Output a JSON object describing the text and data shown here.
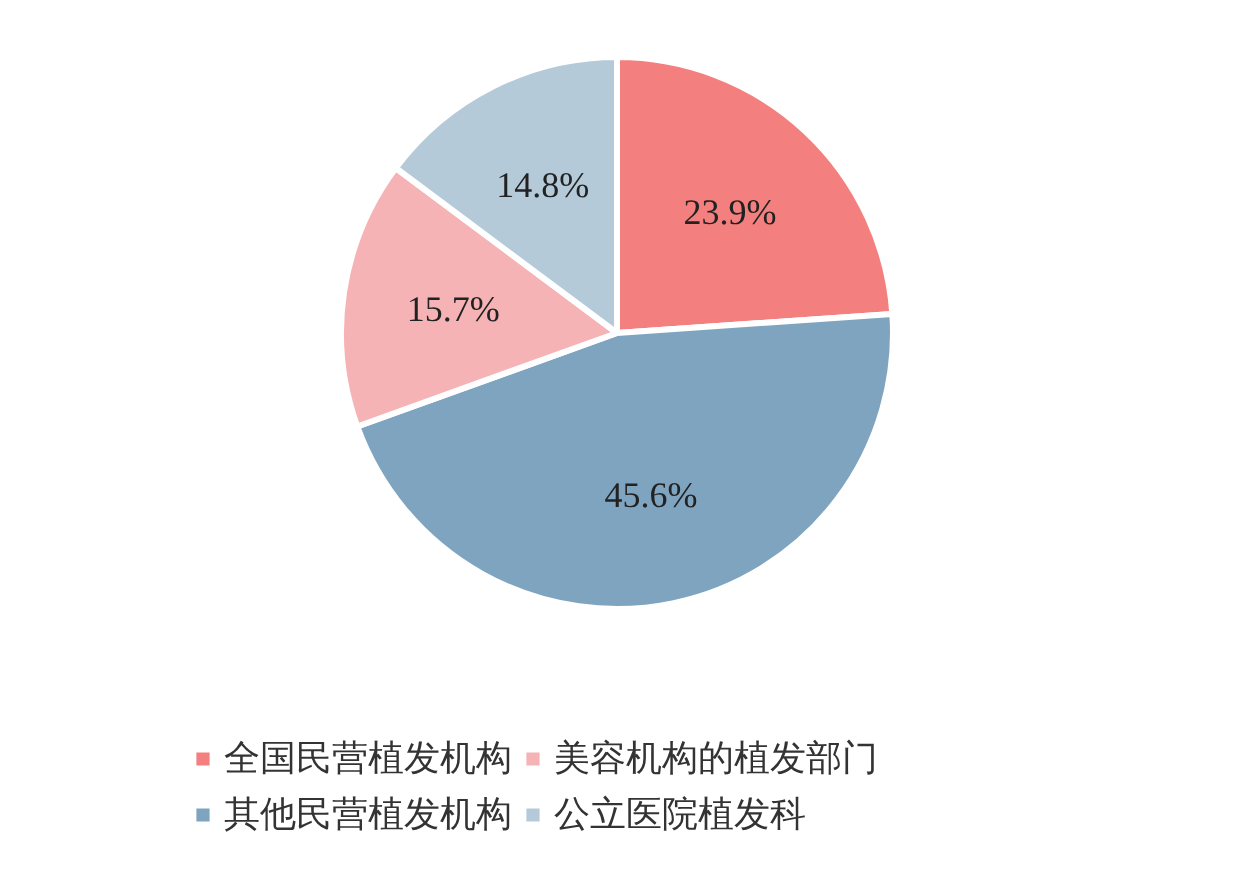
{
  "chart_data": {
    "type": "pie",
    "categories": [
      "全国民营植发机构",
      "其他民营植发机构",
      "美容机构的植发部门",
      "公立医院植发科"
    ],
    "values": [
      23.9,
      45.6,
      15.7,
      14.8
    ],
    "colors": [
      "#f47f7f",
      "#7fa4bf",
      "#f6b3b5",
      "#b5cad9"
    ],
    "value_labels": [
      "23.9%",
      "45.6%",
      "15.7%",
      "14.8%"
    ],
    "legend": "bottom"
  }
}
